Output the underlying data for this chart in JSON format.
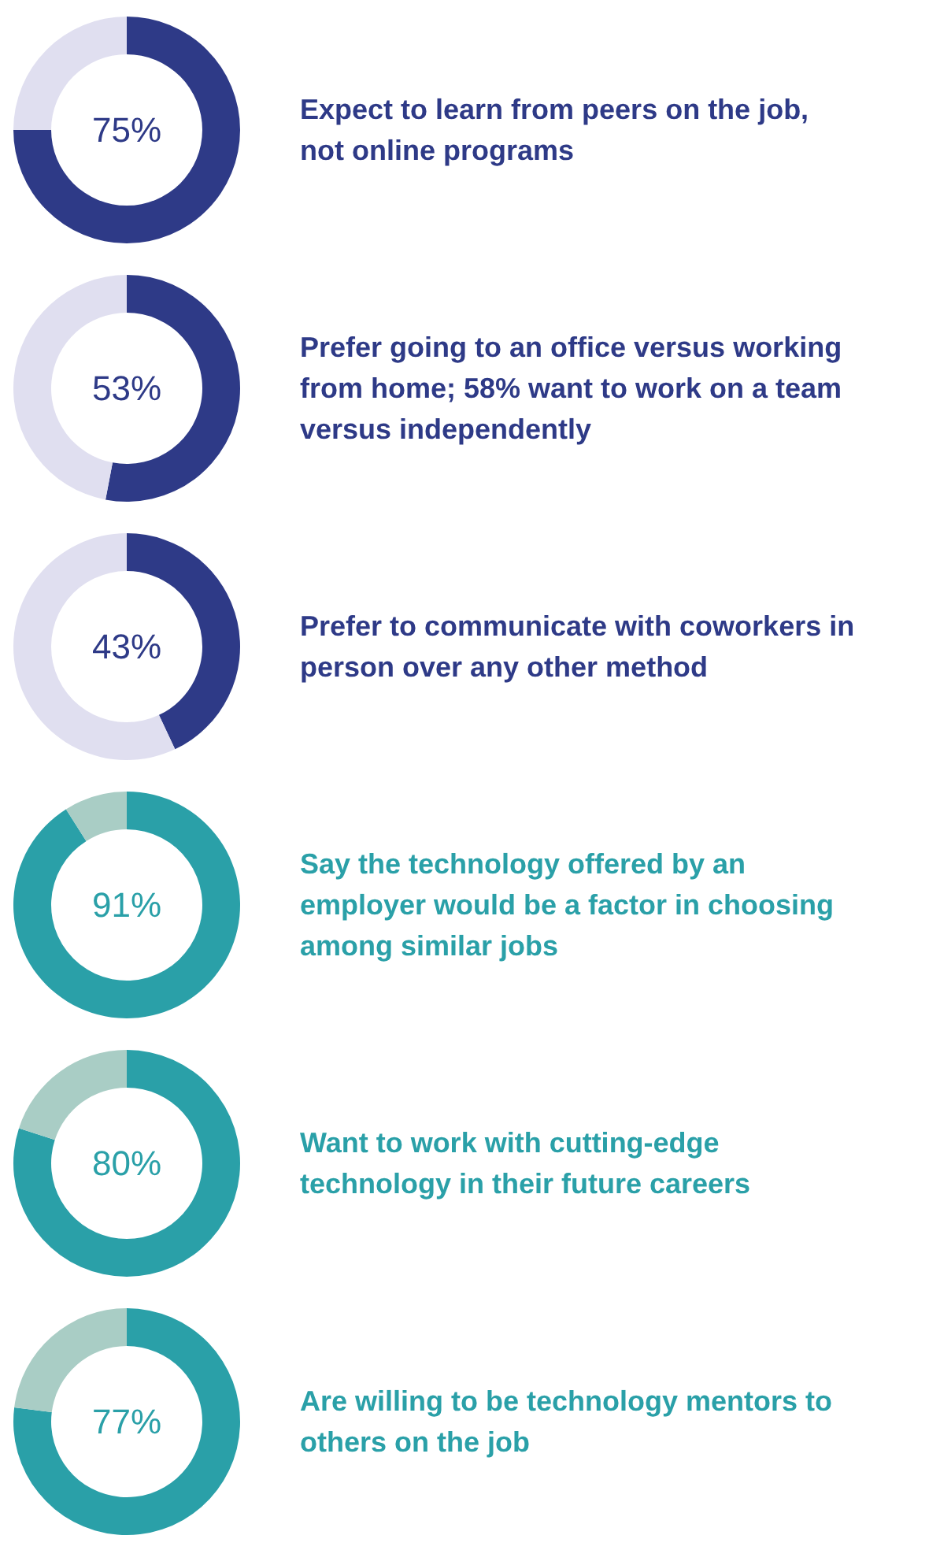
{
  "chart_data": [
    {
      "type": "donut",
      "title": "Expect to learn from peers on the job, not online programs",
      "categories": [
        null,
        null
      ],
      "values": [
        75,
        25
      ],
      "colors": [
        "#2e3a87",
        "#e0dff0"
      ],
      "value_labels": [
        "75%",
        null
      ]
    },
    {
      "type": "donut",
      "title": "Prefer going to an office versus working from home; 58% want to work on a team versus independently",
      "categories": [
        null,
        null
      ],
      "values": [
        53,
        47
      ],
      "colors": [
        "#2e3a87",
        "#e0dff0"
      ],
      "value_labels": [
        "53%",
        null
      ]
    },
    {
      "type": "donut",
      "title": "Prefer to communicate with coworkers in person over any other method",
      "categories": [
        null,
        null
      ],
      "values": [
        43,
        57
      ],
      "colors": [
        "#2e3a87",
        "#e0dff0"
      ],
      "value_labels": [
        "43%",
        null
      ]
    },
    {
      "type": "donut",
      "title": "Say the technology offered by an employer would be a factor in choosing among similar jobs",
      "categories": [
        null,
        null
      ],
      "values": [
        91,
        9
      ],
      "colors": [
        "#2aa0a8",
        "#a9cdc5"
      ],
      "value_labels": [
        "91%",
        null
      ]
    },
    {
      "type": "donut",
      "title": "Want to work with cutting-edge technology in their future careers",
      "categories": [
        null,
        null
      ],
      "values": [
        80,
        20
      ],
      "colors": [
        "#2aa0a8",
        "#a9cdc5"
      ],
      "value_labels": [
        "80%",
        null
      ]
    },
    {
      "type": "donut",
      "title": "Are willing to be technology mentors to others on the job",
      "categories": [
        null,
        null
      ],
      "values": [
        77,
        23
      ],
      "colors": [
        "#2aa0a8",
        "#a9cdc5"
      ],
      "value_labels": [
        "77%",
        null
      ]
    }
  ]
}
